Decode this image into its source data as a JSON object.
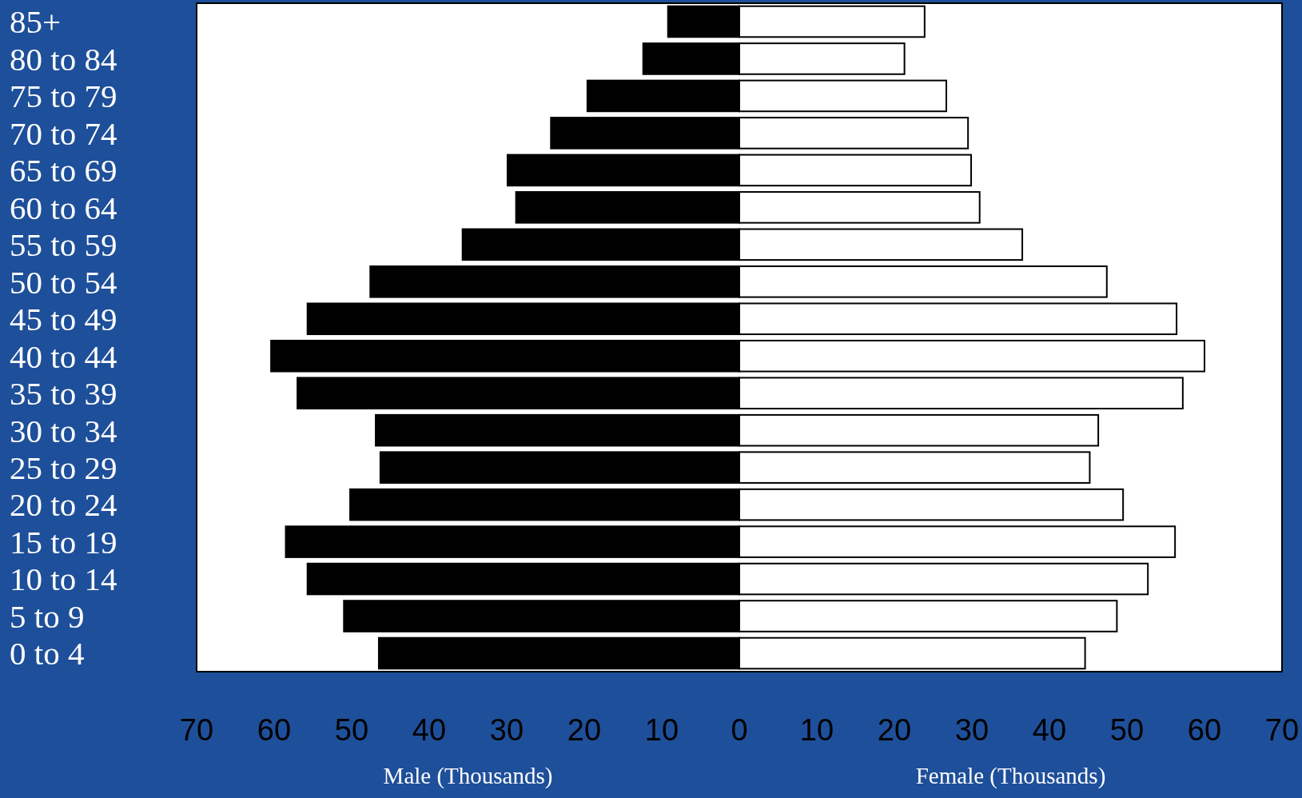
{
  "chart_data": {
    "type": "bar",
    "orientation": "horizontal",
    "categories": [
      "85+",
      "80 to 84",
      "75 to 79",
      "70 to 74",
      "65 to 69",
      "60 to 64",
      "55 to 59",
      "50 to 54",
      "45 to 49",
      "40 to 44",
      "35 to 39",
      "30 to 34",
      "25 to 29",
      "20 to 24",
      "15 to 19",
      "10 to 14",
      "5 to 9",
      "0 to 4"
    ],
    "series": [
      {
        "color": "#000000",
        "values": [
          -9.2,
          -12.4,
          -19.6,
          -24.3,
          -29.9,
          -28.8,
          -35.7,
          -47.6,
          -55.7,
          -60.4,
          -57.0,
          -46.9,
          -46.3,
          -50.2,
          -58.5,
          -55.7,
          -51.0,
          -46.5
        ]
      },
      {
        "color": "#ffffff",
        "values": [
          23.9,
          21.3,
          26.7,
          29.5,
          29.9,
          31.0,
          36.5,
          47.4,
          56.4,
          60.0,
          57.2,
          46.3,
          45.2,
          49.5,
          56.2,
          52.7,
          48.7,
          44.6
        ]
      }
    ],
    "xlim": [
      -70,
      70
    ],
    "xticks": [
      {
        "value": -70,
        "label": "70"
      },
      {
        "value": -60,
        "label": "60"
      },
      {
        "value": -50,
        "label": "50"
      },
      {
        "value": -40,
        "label": "40"
      },
      {
        "value": -30,
        "label": "30"
      },
      {
        "value": -20,
        "label": "20"
      },
      {
        "value": -10,
        "label": "10"
      },
      0,
      10,
      20,
      30,
      40,
      50,
      60,
      70
    ],
    "stacked": true,
    "annotations": [
      "Male (Thousands)",
      "Female (Thousands)"
    ],
    "grid": false
  }
}
